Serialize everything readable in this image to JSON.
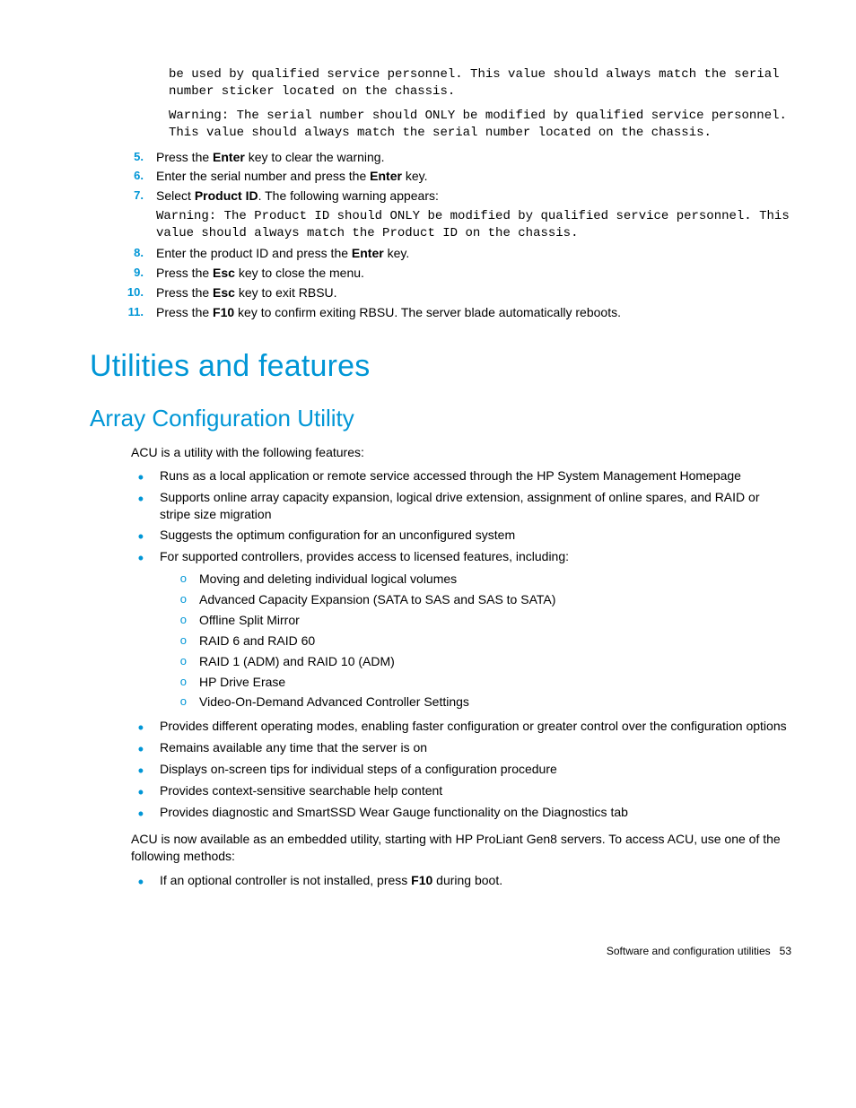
{
  "preamble_mono_1": "be used by qualified service personnel. This value should always match the serial number sticker located on the chassis.",
  "preamble_mono_2": "Warning: The serial number should ONLY be modified by qualified service personnel. This value should always match the serial number located on the chassis.",
  "ordered_steps": [
    {
      "num": "5.",
      "html": "Press the <b>Enter</b> key to clear the warning."
    },
    {
      "num": "6.",
      "html": "Enter the serial number and press the <b>Enter</b> key."
    },
    {
      "num": "7.",
      "html": "Select <b>Product ID</b>. The following warning appears:",
      "mono": "Warning: The Product ID should ONLY be modified by qualified service personnel. This value should always match the Product ID on the chassis."
    },
    {
      "num": "8.",
      "html": "Enter the product ID and press the <b>Enter</b> key."
    },
    {
      "num": "9.",
      "html": "Press the <b>Esc</b> key to close the menu."
    },
    {
      "num": "10.",
      "html": "Press the <b>Esc</b> key to exit RBSU."
    },
    {
      "num": "11.",
      "html": "Press the <b>F10</b> key to confirm exiting RBSU. The server blade automatically reboots."
    }
  ],
  "h1": "Utilities and features",
  "h2": "Array Configuration Utility",
  "acu_intro": "ACU is a utility with the following features:",
  "acu_bullets": [
    {
      "html": "Runs as a local application or remote service accessed through the HP System Management Homepage"
    },
    {
      "html": "Supports online array capacity expansion, logical drive extension, assignment of online spares, and RAID or stripe size migration"
    },
    {
      "html": "Suggests the optimum configuration for an unconfigured system"
    },
    {
      "html": "For supported controllers, provides access to licensed features, including:",
      "sub": [
        "Moving and deleting individual logical volumes",
        "Advanced Capacity Expansion (SATA to SAS and SAS to SATA)",
        "Offline Split Mirror",
        "RAID 6 and RAID 60",
        "RAID 1 (ADM) and RAID 10 (ADM)",
        "HP Drive Erase",
        "Video-On-Demand Advanced Controller Settings"
      ]
    },
    {
      "html": "Provides different operating modes, enabling faster configuration or greater control over the configuration options"
    },
    {
      "html": "Remains available any time that the server is on"
    },
    {
      "html": "Displays on-screen tips for individual steps of a configuration procedure"
    },
    {
      "html": "Provides context-sensitive searchable help content"
    },
    {
      "html": "Provides diagnostic and SmartSSD Wear Gauge functionality on the Diagnostics tab"
    }
  ],
  "acu_para2": "ACU is now available as an embedded utility, starting with HP ProLiant Gen8 servers. To access ACU, use one of the following methods:",
  "acu_bullets2": [
    {
      "html": "If an optional controller is not installed, press <b>F10</b> during boot."
    }
  ],
  "footer_text": "Software and configuration utilities",
  "footer_page": "53"
}
